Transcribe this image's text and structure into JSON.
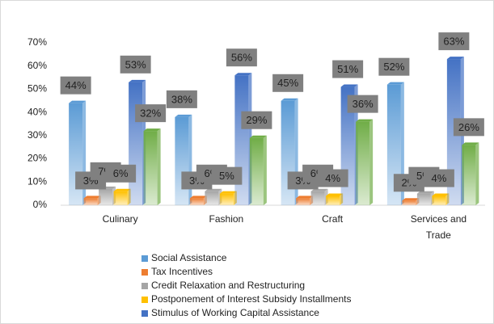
{
  "chart_data": {
    "type": "bar",
    "categories": [
      "Culinary",
      "Fashion",
      "Craft",
      "Services and Trade"
    ],
    "series": [
      {
        "name": "Social Assistance",
        "color": "#5b9bd5",
        "values": [
          44,
          38,
          45,
          52
        ],
        "value_labels": [
          "44%",
          "38%",
          "45%",
          "52%"
        ]
      },
      {
        "name": "Tax Incentives",
        "color": "#ed7d31",
        "values": [
          3,
          3,
          3,
          2
        ],
        "value_labels": [
          "3%",
          "3%",
          "3%",
          "2%"
        ]
      },
      {
        "name": "Credit Relaxation and Restructuring",
        "color": "#a5a5a5",
        "values": [
          7,
          6,
          6,
          5
        ],
        "value_labels": [
          "7%",
          "6%",
          "6%",
          "5%"
        ]
      },
      {
        "name": "Postponement of Interest Subsidy Installments",
        "color": "#ffc000",
        "values": [
          6,
          5,
          4,
          4
        ],
        "value_labels": [
          "6%",
          "5%",
          "4%",
          "4%"
        ]
      },
      {
        "name": "Stimulus of Working Capital Assistance",
        "color": "#4472c4",
        "values": [
          53,
          56,
          51,
          63
        ],
        "value_labels": [
          "53%",
          "56%",
          "51%",
          "63%"
        ]
      },
      {
        "color": "#70ad47",
        "values": [
          32,
          29,
          36,
          26
        ],
        "value_labels": [
          "32%",
          "29%",
          "36%",
          "26%"
        ]
      }
    ],
    "ylim": [
      0,
      70
    ],
    "yticks": [
      {
        "value": 0,
        "label": "0%"
      },
      {
        "value": 10,
        "label": "10%"
      },
      {
        "value": 20,
        "label": "20%"
      },
      {
        "value": 30,
        "label": "30%"
      },
      {
        "value": 40,
        "label": "40%"
      },
      {
        "value": 50,
        "label": "50%"
      },
      {
        "value": 60,
        "label": "60%"
      },
      {
        "value": 70,
        "label": "70%"
      }
    ],
    "grid": false
  }
}
